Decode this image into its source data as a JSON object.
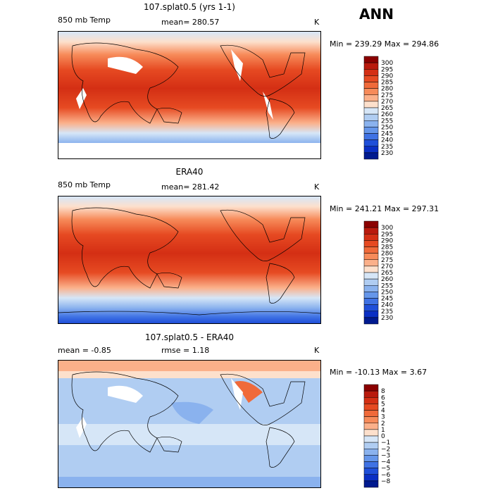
{
  "season": "ANN",
  "panels": [
    {
      "title": "107.splat0.5 (yrs 1-1)",
      "left_label": "850 mb Temp",
      "center_label": "mean=  280.57",
      "units": "K",
      "min_max": "Min = 239.29  Max = 294.86",
      "colorbar_levels": [
        "300",
        "295",
        "290",
        "285",
        "280",
        "275",
        "270",
        "265",
        "260",
        "255",
        "250",
        "245",
        "240",
        "235",
        "230"
      ]
    },
    {
      "title": "ERA40",
      "left_label": "850 mb Temp",
      "center_label": "mean=  281.42",
      "units": "K",
      "min_max": "Min = 241.21  Max = 297.31",
      "colorbar_levels": [
        "300",
        "295",
        "290",
        "285",
        "280",
        "275",
        "270",
        "265",
        "260",
        "255",
        "250",
        "245",
        "240",
        "235",
        "230"
      ]
    },
    {
      "title": "107.splat0.5 - ERA40",
      "left_label": "mean =   -0.85",
      "center_label": "rmse =    1.18",
      "units": "K",
      "min_max": "Min = -10.13  Max =    3.67",
      "colorbar_levels": [
        "8",
        "6",
        "5",
        "4",
        "3",
        "2",
        "1",
        "0",
        "−1",
        "−2",
        "−3",
        "−4",
        "−5",
        "−6",
        "−8"
      ]
    }
  ],
  "colors": {
    "abs_palette": [
      "#8b0000",
      "#b91a0d",
      "#d42f14",
      "#e64a22",
      "#f06a3a",
      "#f78b5a",
      "#fbb08a",
      "#fde0cc",
      "#d6e6f7",
      "#b0cdf2",
      "#8ab2ee",
      "#6596ea",
      "#3f72e4",
      "#1f4fd9",
      "#0a2fc4",
      "#001a8f"
    ],
    "diff_palette": [
      "#8b0000",
      "#b91a0d",
      "#d42f14",
      "#e64a22",
      "#f06a3a",
      "#f78b5a",
      "#fbb08a",
      "#fde0cc",
      "#d6e6f7",
      "#b0cdf2",
      "#8ab2ee",
      "#6596ea",
      "#3f72e4",
      "#1f4fd9",
      "#0a2fc4",
      "#001a8f"
    ]
  }
}
